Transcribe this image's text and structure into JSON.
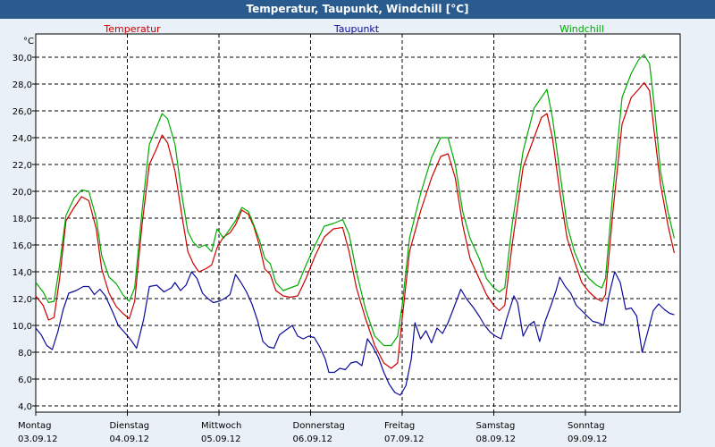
{
  "window": {
    "title": "Temperatur, Taupunkt, Windchill [°C]"
  },
  "chart_data": {
    "type": "line",
    "title": "Temperatur, Taupunkt, Windchill [°C]",
    "ylabel": "°C",
    "ylim": [
      4,
      31
    ],
    "yticks": [
      "4,0",
      "6,0",
      "8,0",
      "10,0",
      "12,0",
      "14,0",
      "16,0",
      "18,0",
      "20,0",
      "22,0",
      "24,0",
      "26,0",
      "28,0",
      "30,0"
    ],
    "ytick_values": [
      4,
      6,
      8,
      10,
      12,
      14,
      16,
      18,
      20,
      22,
      24,
      26,
      28,
      30
    ],
    "xlim": [
      0,
      7
    ],
    "days": [
      {
        "weekday": "Montag",
        "date": "03.09.12"
      },
      {
        "weekday": "Dienstag",
        "date": "04.09.12"
      },
      {
        "weekday": "Mittwoch",
        "date": "05.09.12"
      },
      {
        "weekday": "Donnerstag",
        "date": "06.09.12"
      },
      {
        "weekday": "Freitag",
        "date": "07.09.12"
      },
      {
        "weekday": "Samstag",
        "date": "08.09.12"
      },
      {
        "weekday": "Sonntag",
        "date": "09.09.12"
      }
    ],
    "grid": true,
    "series": [
      {
        "name": "Temperatur",
        "color": "#cc0000",
        "points": [
          [
            0,
            12.2
          ],
          [
            0.08,
            11.5
          ],
          [
            0.14,
            10.4
          ],
          [
            0.2,
            10.6
          ],
          [
            0.26,
            13.5
          ],
          [
            0.33,
            17.8
          ],
          [
            0.42,
            18.8
          ],
          [
            0.5,
            19.6
          ],
          [
            0.58,
            19.3
          ],
          [
            0.66,
            17.2
          ],
          [
            0.72,
            14.2
          ],
          [
            0.8,
            12.4
          ],
          [
            0.88,
            11.4
          ],
          [
            0.95,
            10.9
          ],
          [
            1.02,
            10.5
          ],
          [
            1.08,
            11.8
          ],
          [
            1.16,
            17.5
          ],
          [
            1.24,
            22.0
          ],
          [
            1.32,
            23.2
          ],
          [
            1.38,
            24.2
          ],
          [
            1.44,
            23.6
          ],
          [
            1.52,
            21.5
          ],
          [
            1.6,
            18.0
          ],
          [
            1.66,
            15.5
          ],
          [
            1.72,
            14.6
          ],
          [
            1.78,
            14.0
          ],
          [
            1.85,
            14.2
          ],
          [
            1.92,
            14.5
          ],
          [
            1.98,
            15.8
          ],
          [
            2.05,
            16.6
          ],
          [
            2.12,
            16.9
          ],
          [
            2.18,
            17.5
          ],
          [
            2.25,
            18.6
          ],
          [
            2.32,
            18.3
          ],
          [
            2.38,
            17.4
          ],
          [
            2.44,
            16.0
          ],
          [
            2.5,
            14.2
          ],
          [
            2.56,
            13.8
          ],
          [
            2.62,
            12.6
          ],
          [
            2.7,
            12.2
          ],
          [
            2.78,
            12.1
          ],
          [
            2.86,
            12.2
          ],
          [
            2.95,
            13.5
          ],
          [
            3.05,
            15.2
          ],
          [
            3.15,
            16.6
          ],
          [
            3.25,
            17.2
          ],
          [
            3.35,
            17.3
          ],
          [
            3.42,
            15.5
          ],
          [
            3.5,
            12.8
          ],
          [
            3.6,
            10.5
          ],
          [
            3.7,
            8.5
          ],
          [
            3.8,
            7.2
          ],
          [
            3.88,
            6.8
          ],
          [
            3.95,
            7.2
          ],
          [
            4.0,
            10.5
          ],
          [
            4.08,
            15.5
          ],
          [
            4.2,
            18.5
          ],
          [
            4.32,
            21.0
          ],
          [
            4.42,
            22.6
          ],
          [
            4.5,
            22.8
          ],
          [
            4.58,
            21.0
          ],
          [
            4.66,
            17.5
          ],
          [
            4.74,
            15.0
          ],
          [
            4.84,
            13.5
          ],
          [
            4.92,
            12.3
          ],
          [
            5.0,
            11.5
          ],
          [
            5.06,
            11.1
          ],
          [
            5.12,
            11.5
          ],
          [
            5.2,
            16.0
          ],
          [
            5.32,
            21.8
          ],
          [
            5.44,
            24.0
          ],
          [
            5.52,
            25.5
          ],
          [
            5.58,
            25.8
          ],
          [
            5.64,
            24.0
          ],
          [
            5.72,
            20.0
          ],
          [
            5.8,
            16.5
          ],
          [
            5.88,
            14.8
          ],
          [
            5.96,
            13.2
          ],
          [
            6.04,
            12.5
          ],
          [
            6.12,
            12.0
          ],
          [
            6.18,
            11.8
          ],
          [
            6.22,
            12.3
          ],
          [
            6.3,
            18.5
          ],
          [
            6.4,
            25.0
          ],
          [
            6.5,
            27.0
          ],
          [
            6.58,
            27.6
          ],
          [
            6.64,
            28.1
          ],
          [
            6.7,
            27.5
          ],
          [
            6.75,
            24.5
          ],
          [
            6.82,
            20.5
          ],
          [
            6.9,
            17.5
          ],
          [
            6.97,
            15.4
          ]
        ]
      },
      {
        "name": "Taupunkt",
        "color": "#0a0a99",
        "points": [
          [
            0,
            9.8
          ],
          [
            0.06,
            9.3
          ],
          [
            0.12,
            8.5
          ],
          [
            0.18,
            8.2
          ],
          [
            0.24,
            9.5
          ],
          [
            0.3,
            11.2
          ],
          [
            0.36,
            12.4
          ],
          [
            0.44,
            12.6
          ],
          [
            0.52,
            12.9
          ],
          [
            0.58,
            12.9
          ],
          [
            0.64,
            12.3
          ],
          [
            0.7,
            12.7
          ],
          [
            0.76,
            12.2
          ],
          [
            0.84,
            11.0
          ],
          [
            0.9,
            10.0
          ],
          [
            0.98,
            9.4
          ],
          [
            1.04,
            8.9
          ],
          [
            1.1,
            8.3
          ],
          [
            1.18,
            10.5
          ],
          [
            1.24,
            12.9
          ],
          [
            1.32,
            13.0
          ],
          [
            1.4,
            12.5
          ],
          [
            1.48,
            12.8
          ],
          [
            1.52,
            13.2
          ],
          [
            1.58,
            12.6
          ],
          [
            1.64,
            13.0
          ],
          [
            1.7,
            14.0
          ],
          [
            1.76,
            13.5
          ],
          [
            1.82,
            12.4
          ],
          [
            1.88,
            12.0
          ],
          [
            1.94,
            11.7
          ],
          [
            2.0,
            11.8
          ],
          [
            2.06,
            12.0
          ],
          [
            2.12,
            12.3
          ],
          [
            2.18,
            13.8
          ],
          [
            2.24,
            13.2
          ],
          [
            2.3,
            12.5
          ],
          [
            2.36,
            11.6
          ],
          [
            2.42,
            10.4
          ],
          [
            2.48,
            8.8
          ],
          [
            2.54,
            8.4
          ],
          [
            2.6,
            8.3
          ],
          [
            2.66,
            9.3
          ],
          [
            2.72,
            9.6
          ],
          [
            2.8,
            10.0
          ],
          [
            2.86,
            9.2
          ],
          [
            2.92,
            9.0
          ],
          [
            2.98,
            9.2
          ],
          [
            3.04,
            9.1
          ],
          [
            3.1,
            8.4
          ],
          [
            3.16,
            7.5
          ],
          [
            3.2,
            6.5
          ],
          [
            3.26,
            6.5
          ],
          [
            3.32,
            6.8
          ],
          [
            3.38,
            6.7
          ],
          [
            3.44,
            7.2
          ],
          [
            3.5,
            7.3
          ],
          [
            3.56,
            7.0
          ],
          [
            3.62,
            9.0
          ],
          [
            3.68,
            8.4
          ],
          [
            3.74,
            7.6
          ],
          [
            3.8,
            6.5
          ],
          [
            3.86,
            5.6
          ],
          [
            3.92,
            5.0
          ],
          [
            3.98,
            4.8
          ],
          [
            4.04,
            5.5
          ],
          [
            4.1,
            7.5
          ],
          [
            4.14,
            10.2
          ],
          [
            4.2,
            9.0
          ],
          [
            4.26,
            9.6
          ],
          [
            4.32,
            8.7
          ],
          [
            4.38,
            9.8
          ],
          [
            4.44,
            9.4
          ],
          [
            4.5,
            10.2
          ],
          [
            4.58,
            11.6
          ],
          [
            4.64,
            12.7
          ],
          [
            4.7,
            12.0
          ],
          [
            4.78,
            11.3
          ],
          [
            4.84,
            10.7
          ],
          [
            4.9,
            10.0
          ],
          [
            4.96,
            9.5
          ],
          [
            5.02,
            9.2
          ],
          [
            5.08,
            9.0
          ],
          [
            5.14,
            10.5
          ],
          [
            5.22,
            12.2
          ],
          [
            5.26,
            11.7
          ],
          [
            5.32,
            9.2
          ],
          [
            5.38,
            10.0
          ],
          [
            5.44,
            10.3
          ],
          [
            5.5,
            8.8
          ],
          [
            5.56,
            10.3
          ],
          [
            5.62,
            11.4
          ],
          [
            5.68,
            12.6
          ],
          [
            5.72,
            13.6
          ],
          [
            5.78,
            12.9
          ],
          [
            5.84,
            12.4
          ],
          [
            5.9,
            11.5
          ],
          [
            5.96,
            11.1
          ],
          [
            6.02,
            10.7
          ],
          [
            6.08,
            10.3
          ],
          [
            6.14,
            10.2
          ],
          [
            6.2,
            10.0
          ],
          [
            6.26,
            12.3
          ],
          [
            6.32,
            14.0
          ],
          [
            6.38,
            13.2
          ],
          [
            6.44,
            11.2
          ],
          [
            6.5,
            11.3
          ],
          [
            6.56,
            10.7
          ],
          [
            6.62,
            8.0
          ],
          [
            6.68,
            9.5
          ],
          [
            6.74,
            11.1
          ],
          [
            6.8,
            11.6
          ],
          [
            6.86,
            11.2
          ],
          [
            6.92,
            10.9
          ],
          [
            6.97,
            10.8
          ]
        ]
      },
      {
        "name": "Windchill",
        "color": "#00aa00",
        "points": [
          [
            0,
            13.2
          ],
          [
            0.08,
            12.5
          ],
          [
            0.14,
            11.7
          ],
          [
            0.2,
            11.8
          ],
          [
            0.26,
            14.5
          ],
          [
            0.33,
            18.2
          ],
          [
            0.42,
            19.5
          ],
          [
            0.5,
            20.1
          ],
          [
            0.58,
            20.0
          ],
          [
            0.66,
            18.0
          ],
          [
            0.72,
            15.2
          ],
          [
            0.8,
            13.6
          ],
          [
            0.88,
            13.1
          ],
          [
            0.95,
            12.3
          ],
          [
            1.02,
            11.8
          ],
          [
            1.08,
            12.8
          ],
          [
            1.16,
            18.5
          ],
          [
            1.24,
            23.5
          ],
          [
            1.32,
            24.8
          ],
          [
            1.38,
            25.8
          ],
          [
            1.44,
            25.4
          ],
          [
            1.52,
            23.5
          ],
          [
            1.6,
            19.5
          ],
          [
            1.66,
            17.0
          ],
          [
            1.72,
            16.2
          ],
          [
            1.78,
            15.8
          ],
          [
            1.85,
            16.0
          ],
          [
            1.92,
            15.5
          ],
          [
            1.98,
            17.2
          ],
          [
            2.05,
            16.5
          ],
          [
            2.12,
            17.2
          ],
          [
            2.18,
            17.8
          ],
          [
            2.25,
            18.8
          ],
          [
            2.32,
            18.5
          ],
          [
            2.38,
            17.5
          ],
          [
            2.44,
            16.4
          ],
          [
            2.5,
            15.0
          ],
          [
            2.56,
            14.6
          ],
          [
            2.62,
            13.2
          ],
          [
            2.7,
            12.6
          ],
          [
            2.78,
            12.8
          ],
          [
            2.86,
            13.0
          ],
          [
            2.95,
            14.5
          ],
          [
            3.05,
            16.0
          ],
          [
            3.15,
            17.4
          ],
          [
            3.25,
            17.6
          ],
          [
            3.35,
            17.9
          ],
          [
            3.42,
            16.8
          ],
          [
            3.5,
            14.0
          ],
          [
            3.6,
            11.2
          ],
          [
            3.7,
            9.2
          ],
          [
            3.8,
            8.5
          ],
          [
            3.88,
            8.5
          ],
          [
            3.95,
            9.2
          ],
          [
            4.0,
            11.5
          ],
          [
            4.08,
            16.5
          ],
          [
            4.2,
            19.8
          ],
          [
            4.32,
            22.5
          ],
          [
            4.42,
            24.0
          ],
          [
            4.5,
            24.0
          ],
          [
            4.58,
            22.0
          ],
          [
            4.66,
            18.5
          ],
          [
            4.74,
            16.5
          ],
          [
            4.84,
            15.0
          ],
          [
            4.92,
            13.5
          ],
          [
            5.0,
            12.8
          ],
          [
            5.06,
            12.5
          ],
          [
            5.12,
            12.8
          ],
          [
            5.2,
            17.5
          ],
          [
            5.32,
            23.0
          ],
          [
            5.44,
            26.2
          ],
          [
            5.52,
            27.0
          ],
          [
            5.58,
            27.6
          ],
          [
            5.64,
            25.5
          ],
          [
            5.72,
            21.5
          ],
          [
            5.8,
            17.5
          ],
          [
            5.88,
            15.5
          ],
          [
            5.96,
            14.2
          ],
          [
            6.04,
            13.5
          ],
          [
            6.12,
            13.0
          ],
          [
            6.18,
            12.8
          ],
          [
            6.22,
            13.5
          ],
          [
            6.3,
            20.0
          ],
          [
            6.4,
            27.0
          ],
          [
            6.5,
            28.8
          ],
          [
            6.58,
            29.8
          ],
          [
            6.64,
            30.2
          ],
          [
            6.7,
            29.5
          ],
          [
            6.75,
            26.5
          ],
          [
            6.82,
            21.5
          ],
          [
            6.9,
            18.5
          ],
          [
            6.97,
            16.5
          ]
        ]
      }
    ]
  }
}
